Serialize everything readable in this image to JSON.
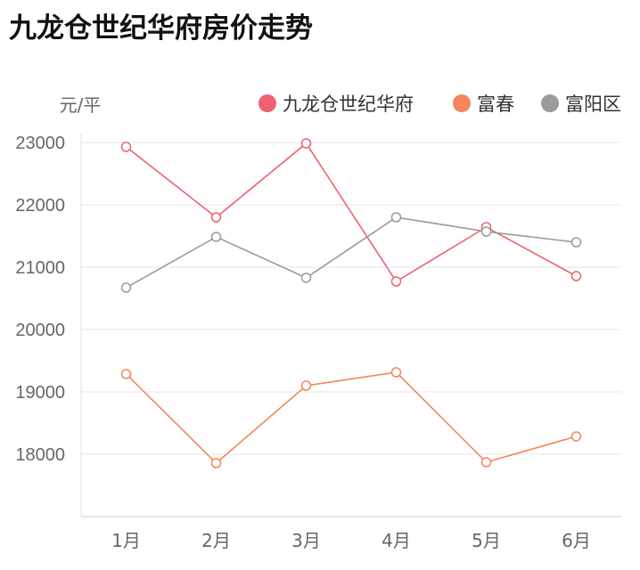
{
  "chart_data": {
    "type": "line",
    "title": "九龙仓世纪华府房价走势",
    "ylabel": "元/平",
    "xlabel": "",
    "categories": [
      "1月",
      "2月",
      "3月",
      "4月",
      "5月",
      "6月"
    ],
    "ylim": [
      17000,
      23000
    ],
    "yticks": [
      23000,
      22000,
      21000,
      20000,
      19000,
      18000
    ],
    "grid": true,
    "legend_position": "top-right",
    "series": [
      {
        "name": "九龙仓世纪华府",
        "color": "#f0606e",
        "values": [
          22930,
          21800,
          22986,
          20771,
          21643,
          20857
        ]
      },
      {
        "name": "富春",
        "color": "#f5845a",
        "values": [
          19286,
          17857,
          19100,
          19314,
          17871,
          18286
        ]
      },
      {
        "name": "富阳区",
        "color": "#9a9a9a",
        "values": [
          20671,
          21486,
          20829,
          21800,
          21571,
          21400
        ]
      }
    ]
  }
}
